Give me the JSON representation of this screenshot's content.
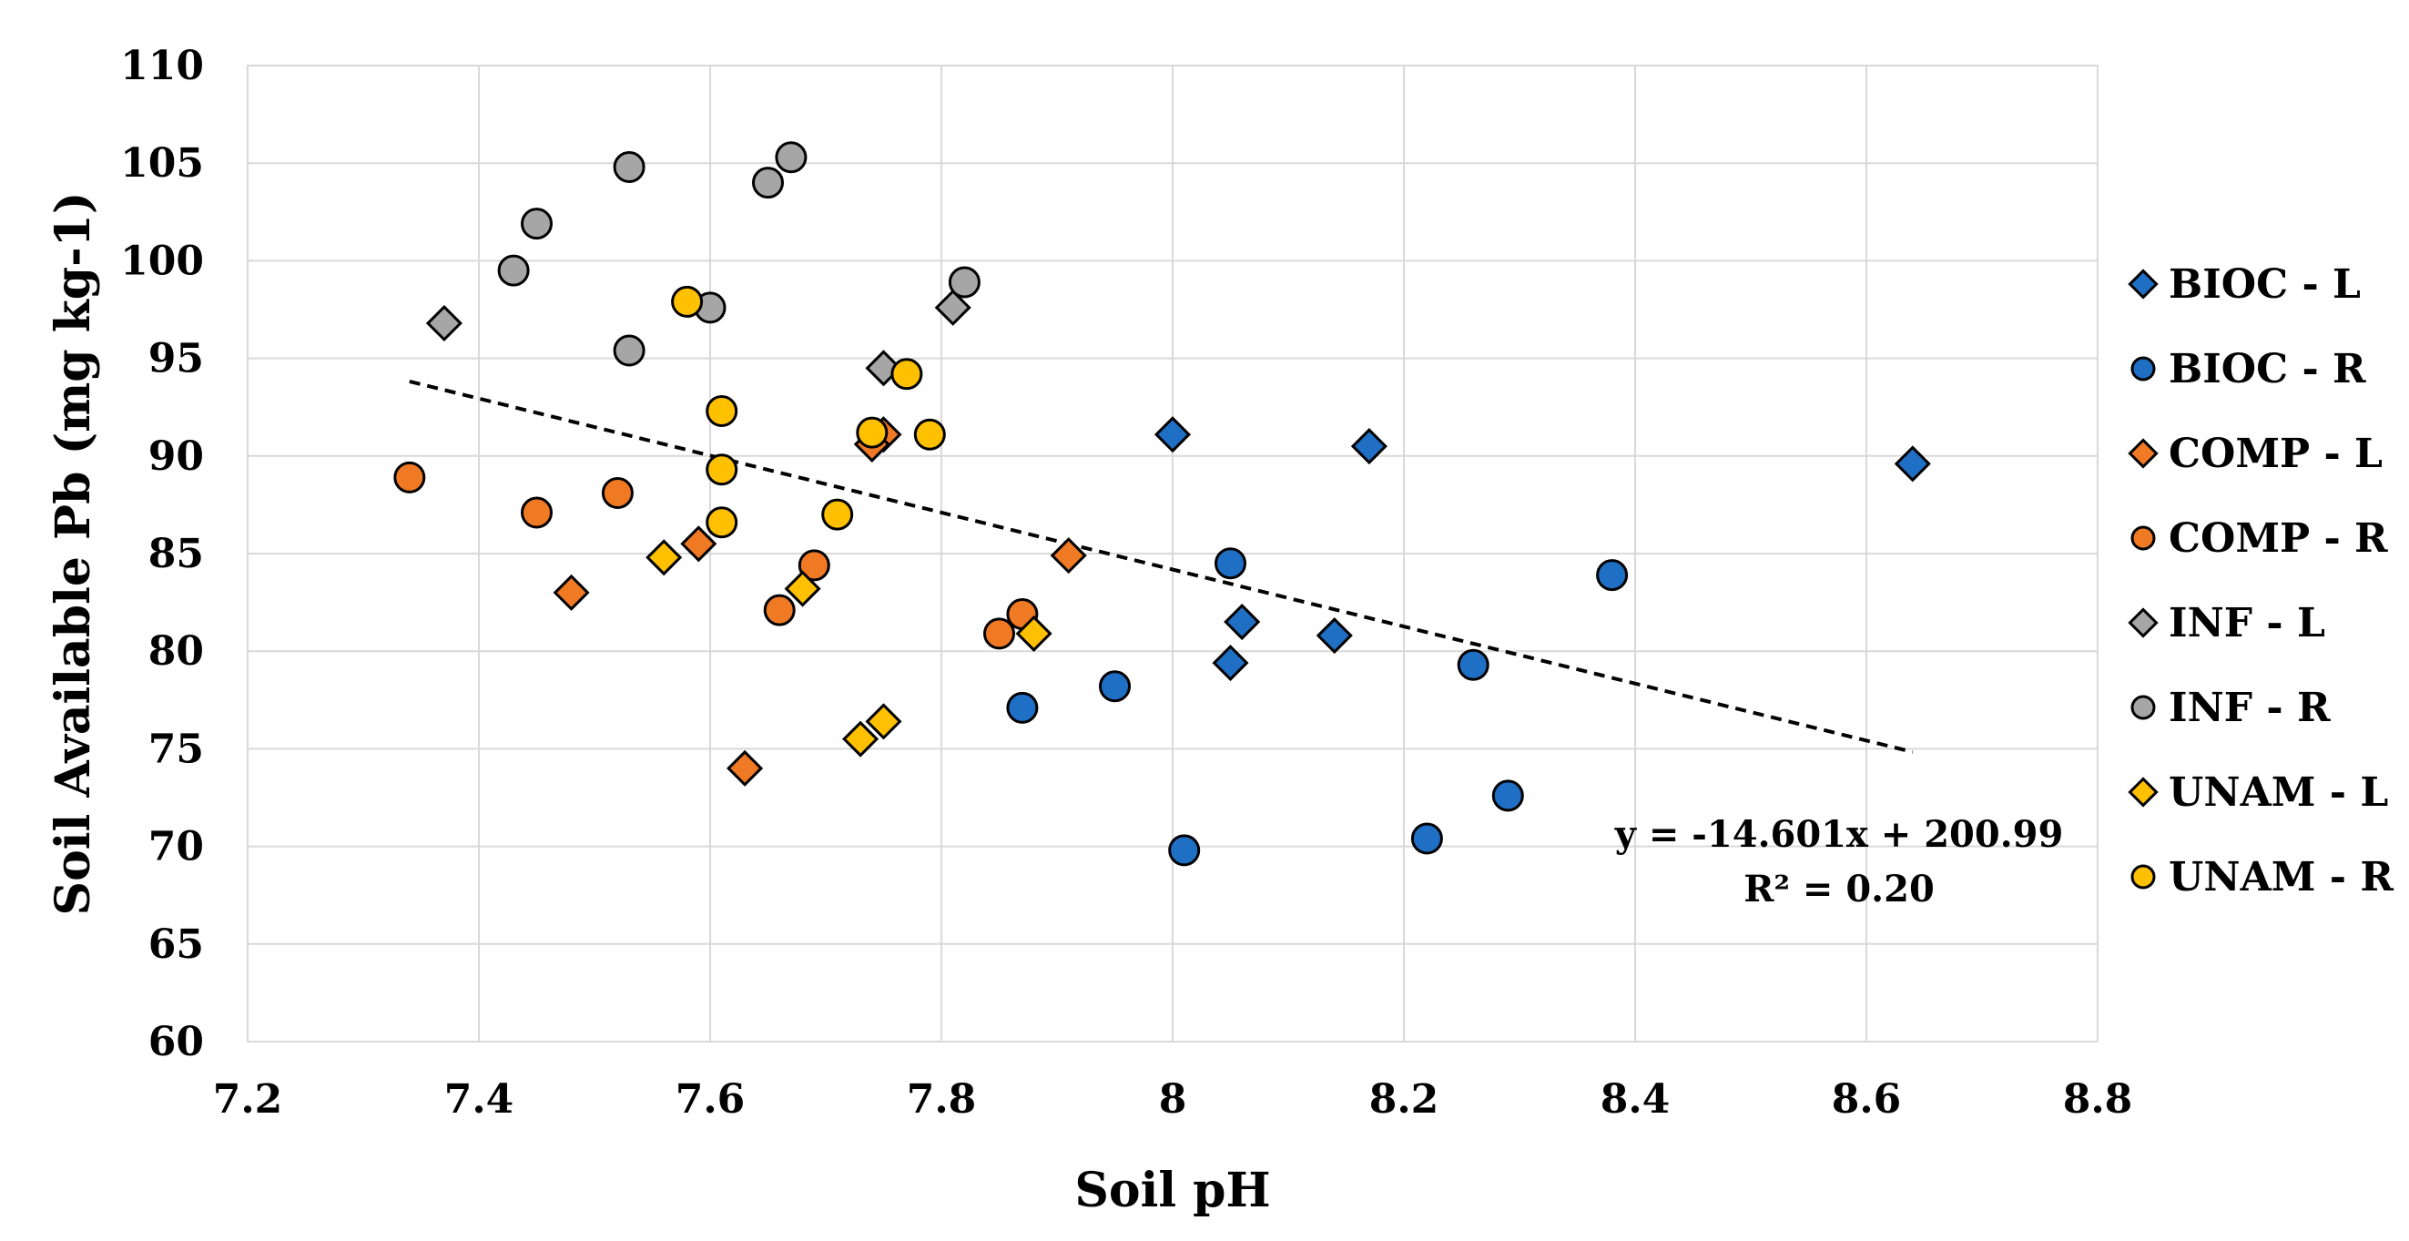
{
  "chart_data": {
    "type": "scatter",
    "title": "",
    "xlabel": "Soil pH",
    "ylabel": "Soil Available Pb (mg kg-1)",
    "xlim": [
      7.2,
      8.8
    ],
    "ylim": [
      60,
      110
    ],
    "xticks": [
      7.2,
      7.4,
      7.6,
      7.8,
      8.0,
      8.2,
      8.4,
      8.6,
      8.8
    ],
    "xtick_labels": [
      "7.2",
      "7.4",
      "7.6",
      "7.8",
      "8",
      "8.2",
      "8.4",
      "8.6",
      "8.8"
    ],
    "yticks": [
      60,
      65,
      70,
      75,
      80,
      85,
      90,
      95,
      100,
      105,
      110
    ],
    "ytick_labels": [
      "60",
      "65",
      "70",
      "75",
      "80",
      "85",
      "90",
      "95",
      "100",
      "105",
      "110"
    ],
    "grid": true,
    "legend_position": "right",
    "series": [
      {
        "name": "BIOC - L",
        "marker": "diamond",
        "color": "#1f6fc5",
        "points": [
          [
            8.0,
            91.1
          ],
          [
            8.17,
            90.5
          ],
          [
            8.64,
            89.6
          ],
          [
            8.06,
            81.5
          ],
          [
            8.14,
            80.8
          ],
          [
            8.05,
            79.4
          ]
        ]
      },
      {
        "name": "BIOC - R",
        "marker": "circle",
        "color": "#1f6fc5",
        "points": [
          [
            8.05,
            84.5
          ],
          [
            8.38,
            83.9
          ],
          [
            8.26,
            79.3
          ],
          [
            7.95,
            78.2
          ],
          [
            7.87,
            77.1
          ],
          [
            8.29,
            72.6
          ],
          [
            8.22,
            70.4
          ],
          [
            8.01,
            69.8
          ]
        ]
      },
      {
        "name": "COMP - L",
        "marker": "diamond",
        "color": "#f07a24",
        "points": [
          [
            7.75,
            91.1
          ],
          [
            7.74,
            90.6
          ],
          [
            7.91,
            84.9
          ],
          [
            7.59,
            85.5
          ],
          [
            7.48,
            83.0
          ],
          [
            7.63,
            74.0
          ]
        ]
      },
      {
        "name": "COMP - R",
        "marker": "circle",
        "color": "#f07a24",
        "points": [
          [
            7.34,
            88.9
          ],
          [
            7.45,
            87.1
          ],
          [
            7.52,
            88.1
          ],
          [
            7.69,
            84.4
          ],
          [
            7.66,
            82.1
          ],
          [
            7.87,
            81.9
          ],
          [
            7.85,
            80.9
          ]
        ]
      },
      {
        "name": "INF - L",
        "marker": "diamond",
        "color": "#a6a6a6",
        "points": [
          [
            7.37,
            96.8
          ],
          [
            7.81,
            97.6
          ],
          [
            7.75,
            94.5
          ]
        ]
      },
      {
        "name": "INF - R",
        "marker": "circle",
        "color": "#a6a6a6",
        "points": [
          [
            7.53,
            104.8
          ],
          [
            7.67,
            105.3
          ],
          [
            7.65,
            104.0
          ],
          [
            7.45,
            101.9
          ],
          [
            7.43,
            99.5
          ],
          [
            7.6,
            97.6
          ],
          [
            7.82,
            98.9
          ],
          [
            7.53,
            95.4
          ]
        ]
      },
      {
        "name": "UNAM - L",
        "marker": "diamond",
        "color": "#ffc000",
        "points": [
          [
            7.56,
            84.8
          ],
          [
            7.68,
            83.2
          ],
          [
            7.88,
            80.9
          ],
          [
            7.75,
            76.4
          ],
          [
            7.73,
            75.5
          ]
        ]
      },
      {
        "name": "UNAM - R",
        "marker": "circle",
        "color": "#ffc000",
        "points": [
          [
            7.58,
            97.9
          ],
          [
            7.77,
            94.2
          ],
          [
            7.61,
            92.3
          ],
          [
            7.74,
            91.2
          ],
          [
            7.79,
            91.1
          ],
          [
            7.61,
            89.3
          ],
          [
            7.61,
            86.6
          ],
          [
            7.71,
            87.0
          ]
        ]
      }
    ],
    "trendline": {
      "style": "dashed",
      "slope": -14.601,
      "intercept": 200.99,
      "x_range": [
        7.34,
        8.64
      ],
      "equation_label": "y = -14.601x + 200.99",
      "r2_label": "R² = 0.20"
    }
  }
}
